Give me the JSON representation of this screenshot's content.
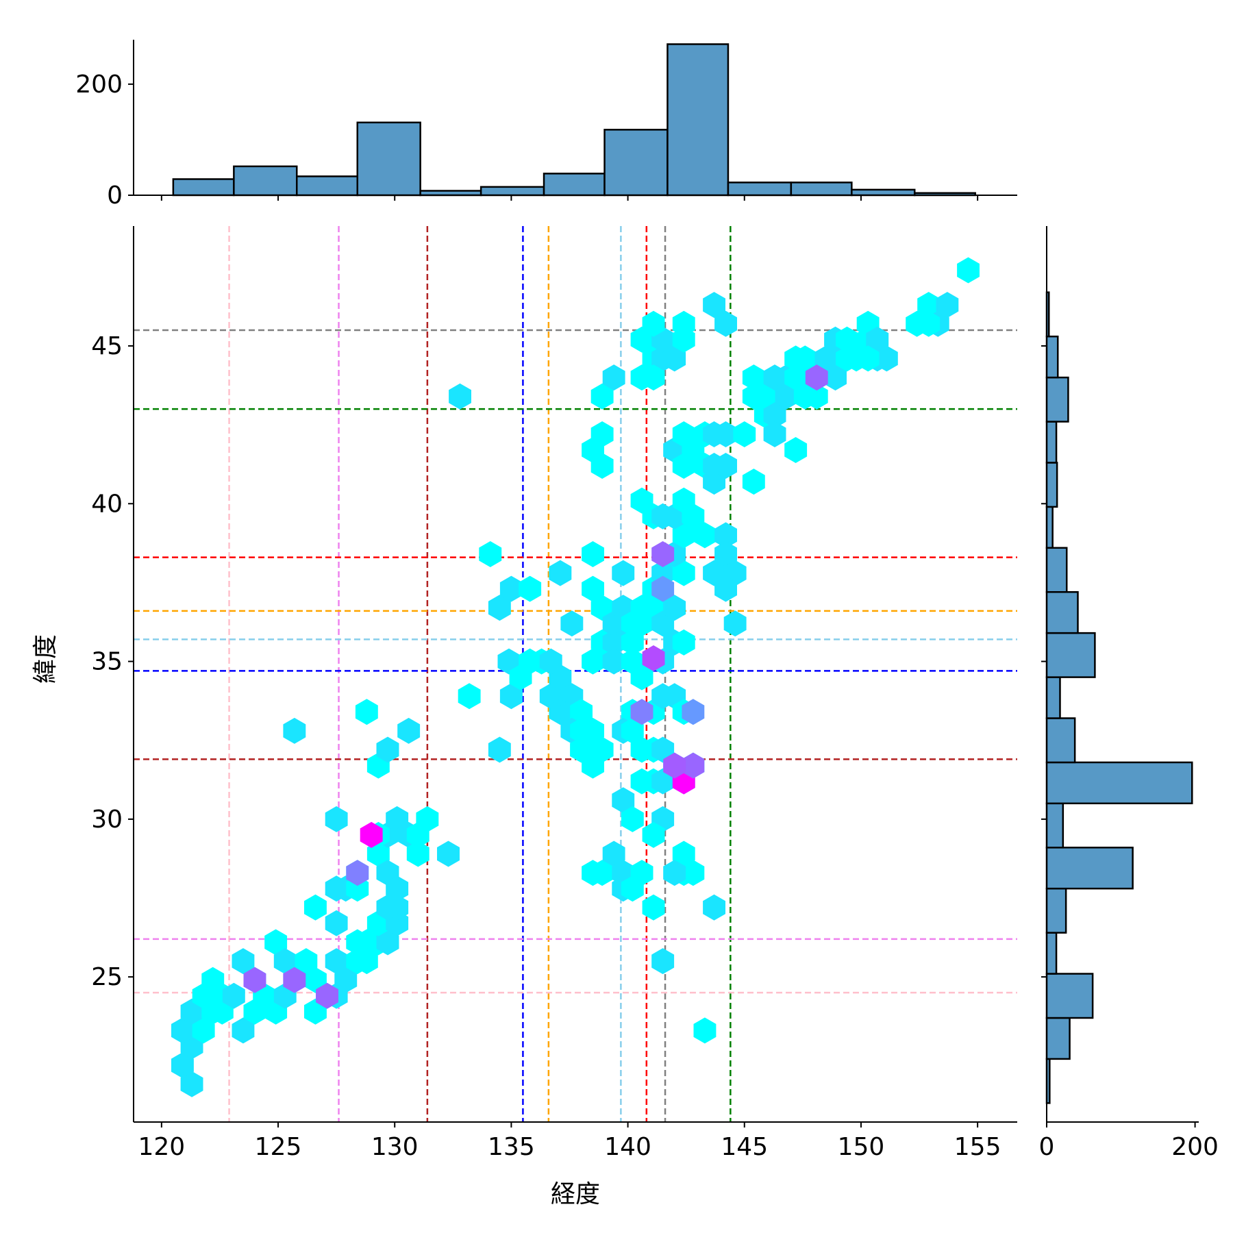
{
  "chart_data": {
    "type": "hexbin",
    "joint": {
      "xlabel": "経度",
      "ylabel": "緯度",
      "xlim": [
        118.8,
        156.7
      ],
      "ylim": [
        20.4,
        48.8
      ],
      "xticks": [
        120,
        125,
        130,
        135,
        140,
        145,
        150,
        155
      ],
      "yticks": [
        25,
        30,
        35,
        40,
        45
      ],
      "colormap": [
        "#00ffff",
        "#ff00ff"
      ],
      "points": [
        [
          121.3,
          21.6
        ],
        [
          120.9,
          22.2
        ],
        [
          121.3,
          22.8
        ],
        [
          120.9,
          23.3
        ],
        [
          121.8,
          23.3
        ],
        [
          121.3,
          23.9
        ],
        [
          122.2,
          23.9
        ],
        [
          122.6,
          23.9
        ],
        [
          121.8,
          24.4
        ],
        [
          122.6,
          24.4
        ],
        [
          122.2,
          24.9
        ],
        [
          123.1,
          24.4
        ],
        [
          123.5,
          23.3
        ],
        [
          124.0,
          23.9
        ],
        [
          124.4,
          24.4
        ],
        [
          124.0,
          24.9
        ],
        [
          123.5,
          25.5
        ],
        [
          124.9,
          23.9
        ],
        [
          125.3,
          24.4
        ],
        [
          124.9,
          26.1
        ],
        [
          125.3,
          25.5
        ],
        [
          126.2,
          25.5
        ],
        [
          125.7,
          24.9
        ],
        [
          126.6,
          24.9
        ],
        [
          126.6,
          23.9
        ],
        [
          127.1,
          24.4
        ],
        [
          127.5,
          24.4
        ],
        [
          127.9,
          24.9
        ],
        [
          127.5,
          25.5
        ],
        [
          128.4,
          25.5
        ],
        [
          128.8,
          25.5
        ],
        [
          128.4,
          26.1
        ],
        [
          127.5,
          26.7
        ],
        [
          128.8,
          26.1
        ],
        [
          129.3,
          26.1
        ],
        [
          129.7,
          26.1
        ],
        [
          129.3,
          26.7
        ],
        [
          130.1,
          26.7
        ],
        [
          130.1,
          27.2
        ],
        [
          129.7,
          27.2
        ],
        [
          126.6,
          27.2
        ],
        [
          127.5,
          27.8
        ],
        [
          127.9,
          27.8
        ],
        [
          128.4,
          27.8
        ],
        [
          128.4,
          28.3
        ],
        [
          129.3,
          28.9
        ],
        [
          129.7,
          28.3
        ],
        [
          130.1,
          27.8
        ],
        [
          129.7,
          29.5
        ],
        [
          129.3,
          29.5
        ],
        [
          127.5,
          30.0
        ],
        [
          130.1,
          30.0
        ],
        [
          130.6,
          29.5
        ],
        [
          131.0,
          29.5
        ],
        [
          131.4,
          30.0
        ],
        [
          131.0,
          28.9
        ],
        [
          132.3,
          28.9
        ],
        [
          129.3,
          31.7
        ],
        [
          129.7,
          32.2
        ],
        [
          128.8,
          33.4
        ],
        [
          125.7,
          32.8
        ],
        [
          130.6,
          32.8
        ],
        [
          132.8,
          43.4
        ],
        [
          133.2,
          33.9
        ],
        [
          134.5,
          32.2
        ],
        [
          135.0,
          33.9
        ],
        [
          134.1,
          38.4
        ],
        [
          134.5,
          36.7
        ],
        [
          135.0,
          37.3
        ],
        [
          134.9,
          35.0
        ],
        [
          135.4,
          34.5
        ],
        [
          135.8,
          35.0
        ],
        [
          135.8,
          37.3
        ],
        [
          136.3,
          35.0
        ],
        [
          136.7,
          33.9
        ],
        [
          137.1,
          34.5
        ],
        [
          137.1,
          37.8
        ],
        [
          136.7,
          35.0
        ],
        [
          137.6,
          33.9
        ],
        [
          137.1,
          33.4
        ],
        [
          137.6,
          33.4
        ],
        [
          138.0,
          33.4
        ],
        [
          137.6,
          32.8
        ],
        [
          138.0,
          32.8
        ],
        [
          138.5,
          32.8
        ],
        [
          138.0,
          32.2
        ],
        [
          138.5,
          31.7
        ],
        [
          138.9,
          32.2
        ],
        [
          137.6,
          36.2
        ],
        [
          138.5,
          35.0
        ],
        [
          138.9,
          35.6
        ],
        [
          138.5,
          37.3
        ],
        [
          138.9,
          36.7
        ],
        [
          138.5,
          38.4
        ],
        [
          138.5,
          41.7
        ],
        [
          138.9,
          41.2
        ],
        [
          138.9,
          42.2
        ],
        [
          138.9,
          43.4
        ],
        [
          139.4,
          44.0
        ],
        [
          139.4,
          35.6
        ],
        [
          139.4,
          35.0
        ],
        [
          139.4,
          36.2
        ],
        [
          139.8,
          36.7
        ],
        [
          139.8,
          36.2
        ],
        [
          139.8,
          37.8
        ],
        [
          140.2,
          35.6
        ],
        [
          140.2,
          36.2
        ],
        [
          140.2,
          35.0
        ],
        [
          140.6,
          36.2
        ],
        [
          140.6,
          36.7
        ],
        [
          140.6,
          34.5
        ],
        [
          140.2,
          33.4
        ],
        [
          139.8,
          32.8
        ],
        [
          140.2,
          32.8
        ],
        [
          140.6,
          32.2
        ],
        [
          141.1,
          32.2
        ],
        [
          140.6,
          31.2
        ],
        [
          141.1,
          31.2
        ],
        [
          141.5,
          31.2
        ],
        [
          140.6,
          40.1
        ],
        [
          141.1,
          39.6
        ],
        [
          141.5,
          39.6
        ],
        [
          141.1,
          37.3
        ],
        [
          141.5,
          37.8
        ],
        [
          141.1,
          36.7
        ],
        [
          141.5,
          36.2
        ],
        [
          141.5,
          35.0
        ],
        [
          141.1,
          33.4
        ],
        [
          141.5,
          33.9
        ],
        [
          141.5,
          32.2
        ],
        [
          141.5,
          30.0
        ],
        [
          141.1,
          29.5
        ],
        [
          141.1,
          27.2
        ],
        [
          141.5,
          25.5
        ],
        [
          138.5,
          28.3
        ],
        [
          138.9,
          28.3
        ],
        [
          139.4,
          28.9
        ],
        [
          139.8,
          28.3
        ],
        [
          139.8,
          27.8
        ],
        [
          140.2,
          27.8
        ],
        [
          140.6,
          28.3
        ],
        [
          139.8,
          30.6
        ],
        [
          140.2,
          30.0
        ],
        [
          142.0,
          31.7
        ],
        [
          142.4,
          31.2
        ],
        [
          142.8,
          31.7
        ],
        [
          142.0,
          33.9
        ],
        [
          142.4,
          33.4
        ],
        [
          142.0,
          35.6
        ],
        [
          142.4,
          35.6
        ],
        [
          142.0,
          36.7
        ],
        [
          142.4,
          37.8
        ],
        [
          142.0,
          38.4
        ],
        [
          142.4,
          39.0
        ],
        [
          142.0,
          39.6
        ],
        [
          142.8,
          39.6
        ],
        [
          142.4,
          40.1
        ],
        [
          142.0,
          41.7
        ],
        [
          142.4,
          41.2
        ],
        [
          142.4,
          42.2
        ],
        [
          142.8,
          41.7
        ],
        [
          143.3,
          42.2
        ],
        [
          143.3,
          41.2
        ],
        [
          143.7,
          40.7
        ],
        [
          143.7,
          41.2
        ],
        [
          144.2,
          41.2
        ],
        [
          143.7,
          42.2
        ],
        [
          144.2,
          42.2
        ],
        [
          143.3,
          39.0
        ],
        [
          144.2,
          39.0
        ],
        [
          144.2,
          38.4
        ],
        [
          144.6,
          37.8
        ],
        [
          144.2,
          37.3
        ],
        [
          144.6,
          36.2
        ],
        [
          143.7,
          37.8
        ],
        [
          142.4,
          28.9
        ],
        [
          142.4,
          28.3
        ],
        [
          142.8,
          28.3
        ],
        [
          143.7,
          27.2
        ],
        [
          143.3,
          23.3
        ],
        [
          142.0,
          28.3
        ],
        [
          140.6,
          45.2
        ],
        [
          141.1,
          44.6
        ],
        [
          141.1,
          45.2
        ],
        [
          141.5,
          44.6
        ],
        [
          141.5,
          45.2
        ],
        [
          141.1,
          45.7
        ],
        [
          142.0,
          44.6
        ],
        [
          142.4,
          45.2
        ],
        [
          142.4,
          45.7
        ],
        [
          143.7,
          46.3
        ],
        [
          144.2,
          45.7
        ],
        [
          140.6,
          44.0
        ],
        [
          141.1,
          44.0
        ],
        [
          145.0,
          42.2
        ],
        [
          145.4,
          43.4
        ],
        [
          145.4,
          44.0
        ],
        [
          145.9,
          43.4
        ],
        [
          145.9,
          42.8
        ],
        [
          146.3,
          42.8
        ],
        [
          146.8,
          43.4
        ],
        [
          146.3,
          44.0
        ],
        [
          146.8,
          44.0
        ],
        [
          147.2,
          44.0
        ],
        [
          147.2,
          44.6
        ],
        [
          147.6,
          44.0
        ],
        [
          147.6,
          44.6
        ],
        [
          148.1,
          43.4
        ],
        [
          148.1,
          44.0
        ],
        [
          148.5,
          44.6
        ],
        [
          148.9,
          44.0
        ],
        [
          149.4,
          44.6
        ],
        [
          148.9,
          45.2
        ],
        [
          149.4,
          45.2
        ],
        [
          149.8,
          44.6
        ],
        [
          150.3,
          45.2
        ],
        [
          150.3,
          45.7
        ],
        [
          150.7,
          44.6
        ],
        [
          150.7,
          45.2
        ],
        [
          151.1,
          44.6
        ],
        [
          145.4,
          40.7
        ],
        [
          147.2,
          41.7
        ],
        [
          146.3,
          42.2
        ],
        [
          152.4,
          45.7
        ],
        [
          152.9,
          46.3
        ],
        [
          153.3,
          45.7
        ],
        [
          153.7,
          46.3
        ],
        [
          152.9,
          45.7
        ],
        [
          154.6,
          47.4
        ],
        [
          147.6,
          43.4
        ],
        [
          150.3,
          44.6
        ]
      ],
      "hot_points": [
        [
          129.0,
          29.5
        ],
        [
          141.1,
          35.1
        ],
        [
          142.4,
          31.2
        ],
        [
          124.0,
          24.9
        ],
        [
          125.7,
          24.9
        ],
        [
          128.4,
          28.3
        ],
        [
          140.6,
          33.4
        ],
        [
          141.5,
          38.4
        ],
        [
          141.5,
          37.3
        ],
        [
          142.8,
          31.7
        ],
        [
          142.0,
          31.7
        ],
        [
          148.1,
          44.0
        ],
        [
          142.8,
          33.4
        ],
        [
          127.1,
          24.4
        ]
      ],
      "reference_lines": {
        "vertical": [
          {
            "value": 122.9,
            "color": "#ffc0cb"
          },
          {
            "value": 127.6,
            "color": "#ee82ee"
          },
          {
            "value": 131.4,
            "color": "#b22222"
          },
          {
            "value": 135.5,
            "color": "#0000ff"
          },
          {
            "value": 136.6,
            "color": "#ffa500"
          },
          {
            "value": 139.7,
            "color": "#87ceeb"
          },
          {
            "value": 140.8,
            "color": "#ff0000"
          },
          {
            "value": 141.6,
            "color": "#808080"
          },
          {
            "value": 144.4,
            "color": "#008000"
          }
        ],
        "horizontal": [
          {
            "value": 45.5,
            "color": "#808080"
          },
          {
            "value": 43.0,
            "color": "#008000"
          },
          {
            "value": 38.3,
            "color": "#ff0000"
          },
          {
            "value": 36.6,
            "color": "#ffa500"
          },
          {
            "value": 35.7,
            "color": "#87ceeb"
          },
          {
            "value": 34.7,
            "color": "#0000ff"
          },
          {
            "value": 31.9,
            "color": "#b22222"
          },
          {
            "value": 26.2,
            "color": "#ee82ee"
          },
          {
            "value": 24.5,
            "color": "#ffc0cb"
          }
        ]
      }
    },
    "marginal_x": {
      "type": "histogram",
      "ylim": [
        0,
        280
      ],
      "yticks": [
        0,
        200
      ],
      "bar_color": "#5799c6",
      "edge_color": "#000000",
      "bins": [
        {
          "start": 120.5,
          "end": 123.1,
          "count": 29
        },
        {
          "start": 123.1,
          "end": 125.8,
          "count": 52
        },
        {
          "start": 125.8,
          "end": 128.4,
          "count": 34
        },
        {
          "start": 128.4,
          "end": 131.1,
          "count": 131
        },
        {
          "start": 131.1,
          "end": 133.7,
          "count": 8
        },
        {
          "start": 133.7,
          "end": 136.4,
          "count": 15
        },
        {
          "start": 136.4,
          "end": 139.0,
          "count": 39
        },
        {
          "start": 139.0,
          "end": 141.7,
          "count": 118
        },
        {
          "start": 141.7,
          "end": 144.3,
          "count": 272
        },
        {
          "start": 144.3,
          "end": 147.0,
          "count": 23
        },
        {
          "start": 147.0,
          "end": 149.6,
          "count": 23
        },
        {
          "start": 149.6,
          "end": 152.3,
          "count": 10
        },
        {
          "start": 152.3,
          "end": 154.9,
          "count": 4
        }
      ]
    },
    "marginal_y": {
      "type": "histogram",
      "xlim": [
        0,
        205
      ],
      "xticks": [
        0,
        200
      ],
      "bar_color": "#5799c6",
      "edge_color": "#000000",
      "bins": [
        {
          "start": 21.0,
          "end": 22.4,
          "count": 4
        },
        {
          "start": 22.4,
          "end": 23.7,
          "count": 31
        },
        {
          "start": 23.7,
          "end": 25.1,
          "count": 62
        },
        {
          "start": 25.1,
          "end": 26.4,
          "count": 13
        },
        {
          "start": 26.4,
          "end": 27.8,
          "count": 26
        },
        {
          "start": 27.8,
          "end": 29.1,
          "count": 116
        },
        {
          "start": 29.1,
          "end": 30.5,
          "count": 22
        },
        {
          "start": 30.5,
          "end": 31.8,
          "count": 196
        },
        {
          "start": 31.8,
          "end": 33.2,
          "count": 38
        },
        {
          "start": 33.2,
          "end": 34.5,
          "count": 18
        },
        {
          "start": 34.5,
          "end": 35.9,
          "count": 65
        },
        {
          "start": 35.9,
          "end": 37.2,
          "count": 42
        },
        {
          "start": 37.2,
          "end": 38.6,
          "count": 27
        },
        {
          "start": 38.6,
          "end": 39.9,
          "count": 8
        },
        {
          "start": 39.9,
          "end": 41.3,
          "count": 14
        },
        {
          "start": 41.3,
          "end": 42.6,
          "count": 13
        },
        {
          "start": 42.6,
          "end": 44.0,
          "count": 29
        },
        {
          "start": 44.0,
          "end": 45.3,
          "count": 15
        },
        {
          "start": 45.3,
          "end": 46.7,
          "count": 3
        }
      ]
    }
  }
}
